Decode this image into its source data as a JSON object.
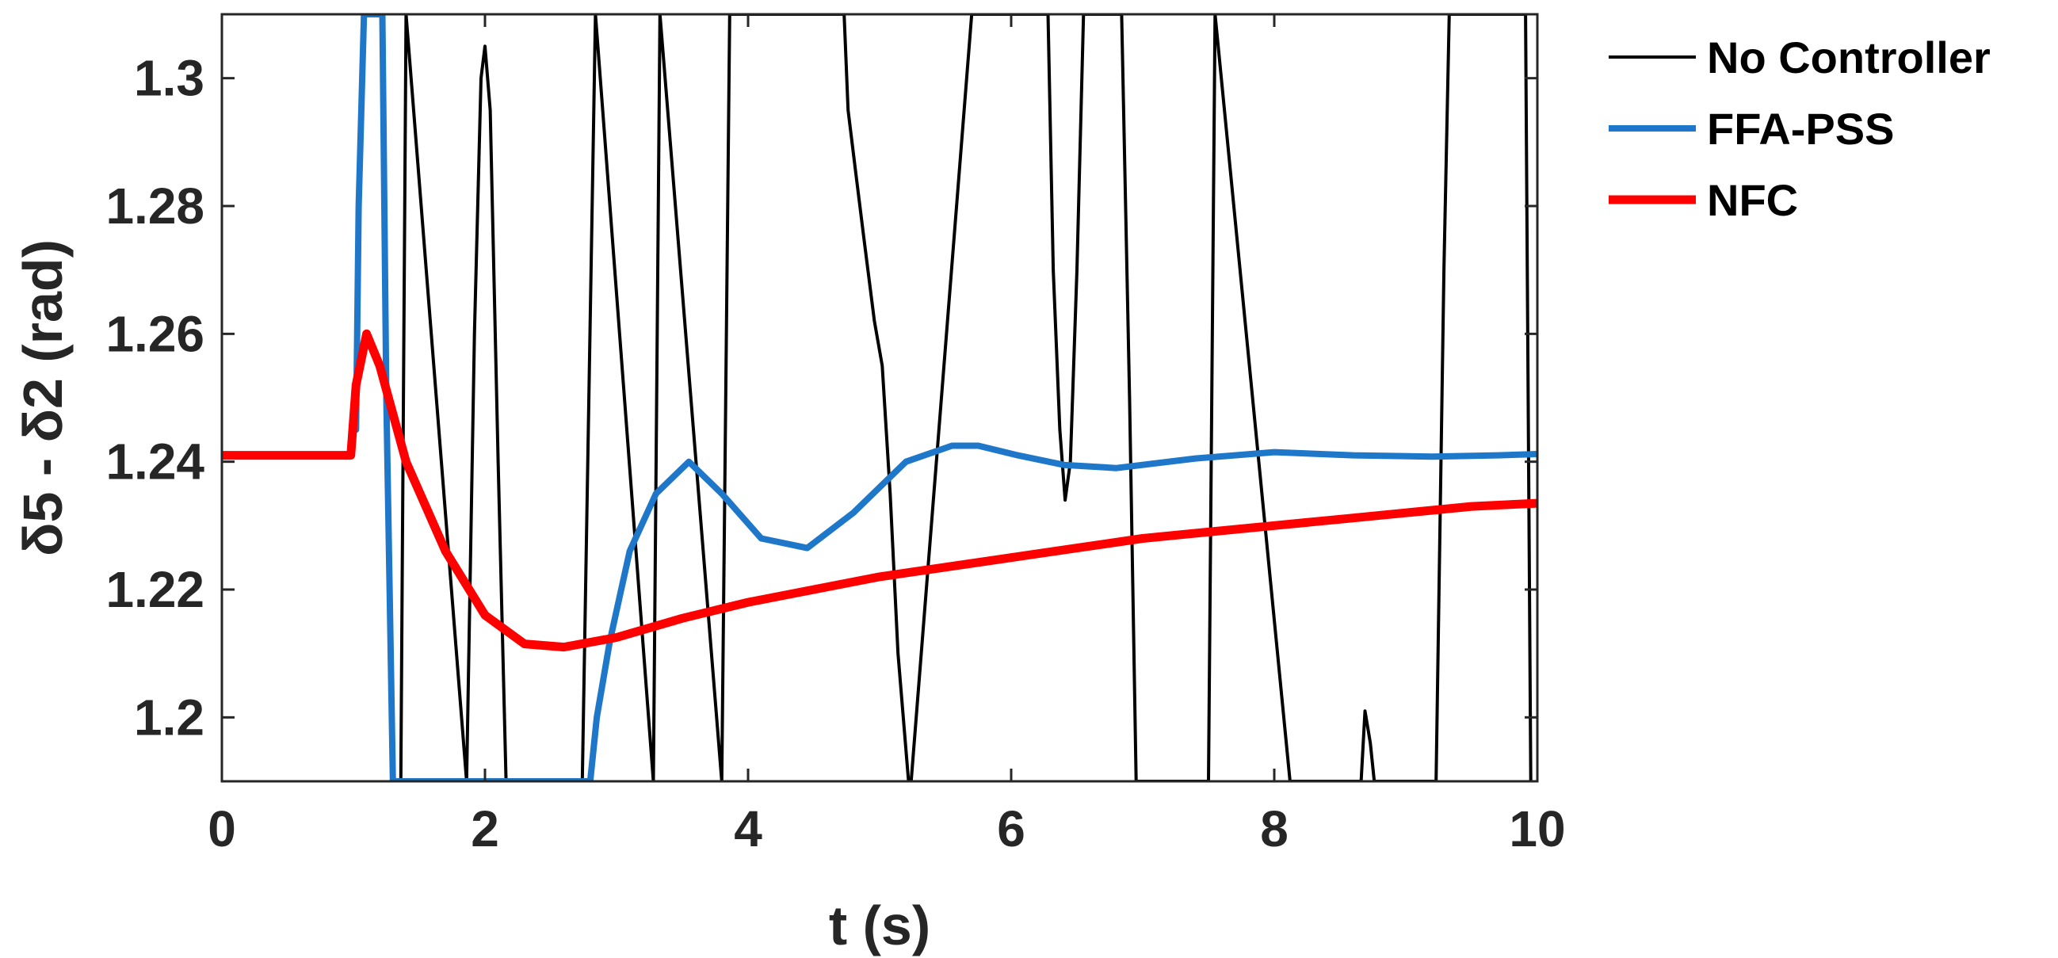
{
  "chart_data": {
    "type": "line",
    "title": "",
    "xlabel": "t (s)",
    "ylabel": "δ5 - δ2 (rad)",
    "xlim": [
      0,
      10
    ],
    "ylim": [
      1.19,
      1.31
    ],
    "xticks": [
      0,
      2,
      4,
      6,
      8,
      10
    ],
    "xtick_labels": [
      "0",
      "2",
      "4",
      "6",
      "8",
      "10"
    ],
    "yticks": [
      1.2,
      1.22,
      1.24,
      1.26,
      1.28,
      1.3
    ],
    "ytick_labels": [
      "1.2",
      "1.22",
      "1.24",
      "1.26",
      "1.28",
      "1.3"
    ],
    "grid": false,
    "legend_position": "outside-top-right",
    "series": [
      {
        "name": "No Controller",
        "color": "#000000",
        "x": [
          1.36,
          1.4,
          1.86,
          1.92,
          1.97,
          2.0,
          2.04,
          2.1,
          2.16,
          2.74,
          2.79,
          2.84,
          3.28,
          3.33,
          3.8,
          3.86,
          4.73,
          4.76,
          4.82,
          4.88,
          4.96,
          5.02,
          5.08,
          5.14,
          5.22,
          5.24,
          5.7,
          5.74,
          6.28,
          6.32,
          6.37,
          6.41,
          6.45,
          6.5,
          6.55,
          6.6,
          6.84,
          6.9,
          6.95,
          7.5,
          7.55,
          8.12,
          8.17,
          8.66,
          8.69,
          8.73,
          8.76,
          8.8,
          9.23,
          9.29,
          9.33,
          9.91,
          9.95
        ],
        "y": [
          1.19,
          1.31,
          1.19,
          1.26,
          1.3,
          1.305,
          1.295,
          1.24,
          1.19,
          1.19,
          1.25,
          1.31,
          1.19,
          1.31,
          1.19,
          1.31,
          1.31,
          1.295,
          1.285,
          1.275,
          1.262,
          1.255,
          1.235,
          1.21,
          1.19,
          1.19,
          1.31,
          1.31,
          1.31,
          1.27,
          1.245,
          1.234,
          1.24,
          1.27,
          1.31,
          1.31,
          1.31,
          1.25,
          1.19,
          1.19,
          1.31,
          1.19,
          1.19,
          1.19,
          1.201,
          1.196,
          1.19,
          1.19,
          1.19,
          1.27,
          1.31,
          1.31,
          1.19
        ]
      },
      {
        "name": "FFA-PSS",
        "color": "#1f77c9",
        "x": [
          1.02,
          1.04,
          1.08,
          1.22,
          1.25,
          1.3,
          2.8,
          2.85,
          2.95,
          3.1,
          3.3,
          3.55,
          3.8,
          4.1,
          4.45,
          4.8,
          5.2,
          5.55,
          5.75,
          6.05,
          6.4,
          6.8,
          7.4,
          8.0,
          8.6,
          9.2,
          9.7,
          10.0
        ],
        "y": [
          1.245,
          1.28,
          1.31,
          1.31,
          1.25,
          1.19,
          1.19,
          1.2,
          1.212,
          1.226,
          1.235,
          1.24,
          1.235,
          1.228,
          1.2265,
          1.232,
          1.24,
          1.2425,
          1.2425,
          1.241,
          1.2395,
          1.239,
          1.2405,
          1.2415,
          1.241,
          1.2408,
          1.241,
          1.2412
        ]
      },
      {
        "name": "NFC",
        "color": "#ff0000",
        "x": [
          0,
          0.98,
          1.02,
          1.1,
          1.2,
          1.4,
          1.7,
          2.0,
          2.3,
          2.6,
          3.0,
          3.5,
          4.0,
          4.5,
          5.0,
          5.5,
          6.0,
          6.5,
          7.0,
          7.5,
          8.0,
          8.5,
          9.0,
          9.5,
          10.0
        ],
        "y": [
          1.241,
          1.241,
          1.252,
          1.26,
          1.255,
          1.24,
          1.226,
          1.216,
          1.2115,
          1.211,
          1.2125,
          1.2155,
          1.218,
          1.22,
          1.222,
          1.2235,
          1.225,
          1.2265,
          1.228,
          1.229,
          1.23,
          1.231,
          1.232,
          1.233,
          1.2335
        ]
      }
    ]
  }
}
